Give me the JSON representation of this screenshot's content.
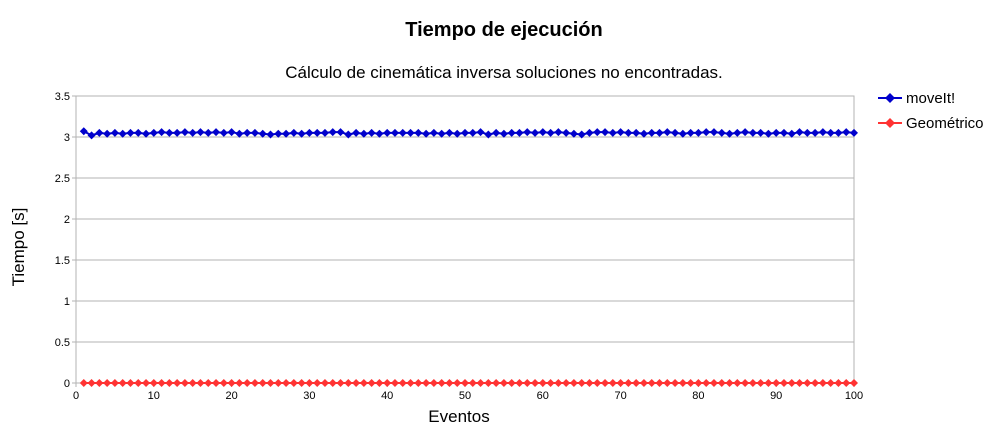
{
  "chart_data": {
    "type": "line",
    "title": "Tiempo de ejecución",
    "subtitle": "Cálculo de cinemática inversa soluciones no encontradas.",
    "xlabel": "Eventos",
    "ylabel": "Tiempo [s]",
    "xlim": [
      0,
      100
    ],
    "ylim": [
      0,
      3.5
    ],
    "xticks": [
      0,
      10,
      20,
      30,
      40,
      50,
      60,
      70,
      80,
      90,
      100
    ],
    "yticks": [
      0,
      0.5,
      1,
      1.5,
      2,
      2.5,
      3,
      3.5
    ],
    "grid": true,
    "legend_position": "right",
    "x": [
      1,
      2,
      3,
      4,
      5,
      6,
      7,
      8,
      9,
      10,
      11,
      12,
      13,
      14,
      15,
      16,
      17,
      18,
      19,
      20,
      21,
      22,
      23,
      24,
      25,
      26,
      27,
      28,
      29,
      30,
      31,
      32,
      33,
      34,
      35,
      36,
      37,
      38,
      39,
      40,
      41,
      42,
      43,
      44,
      45,
      46,
      47,
      48,
      49,
      50,
      51,
      52,
      53,
      54,
      55,
      56,
      57,
      58,
      59,
      60,
      61,
      62,
      63,
      64,
      65,
      66,
      67,
      68,
      69,
      70,
      71,
      72,
      73,
      74,
      75,
      76,
      77,
      78,
      79,
      80,
      81,
      82,
      83,
      84,
      85,
      86,
      87,
      88,
      89,
      90,
      91,
      92,
      93,
      94,
      95,
      96,
      97,
      98,
      99,
      100
    ],
    "series": [
      {
        "name": "moveIt!",
        "color": "#0000cc",
        "marker": "diamond",
        "values": [
          3.07,
          3.02,
          3.05,
          3.04,
          3.05,
          3.04,
          3.05,
          3.05,
          3.04,
          3.05,
          3.06,
          3.05,
          3.05,
          3.06,
          3.05,
          3.06,
          3.05,
          3.06,
          3.05,
          3.06,
          3.04,
          3.05,
          3.05,
          3.04,
          3.03,
          3.04,
          3.04,
          3.05,
          3.04,
          3.05,
          3.05,
          3.05,
          3.06,
          3.06,
          3.03,
          3.05,
          3.04,
          3.05,
          3.04,
          3.05,
          3.05,
          3.05,
          3.05,
          3.05,
          3.04,
          3.05,
          3.04,
          3.05,
          3.04,
          3.05,
          3.05,
          3.06,
          3.03,
          3.05,
          3.04,
          3.05,
          3.05,
          3.06,
          3.05,
          3.06,
          3.05,
          3.06,
          3.05,
          3.04,
          3.03,
          3.05,
          3.06,
          3.06,
          3.05,
          3.06,
          3.05,
          3.05,
          3.04,
          3.05,
          3.05,
          3.06,
          3.05,
          3.04,
          3.05,
          3.05,
          3.06,
          3.06,
          3.05,
          3.04,
          3.05,
          3.06,
          3.05,
          3.05,
          3.04,
          3.05,
          3.05,
          3.04,
          3.06,
          3.05,
          3.05,
          3.06,
          3.05,
          3.05,
          3.06,
          3.05
        ]
      },
      {
        "name": "Geométrico",
        "color": "#ff3333",
        "marker": "diamond",
        "values": [
          0,
          0,
          0,
          0,
          0,
          0,
          0,
          0,
          0,
          0,
          0,
          0,
          0,
          0,
          0,
          0,
          0,
          0,
          0,
          0,
          0,
          0,
          0,
          0,
          0,
          0,
          0,
          0,
          0,
          0,
          0,
          0,
          0,
          0,
          0,
          0,
          0,
          0,
          0,
          0,
          0,
          0,
          0,
          0,
          0,
          0,
          0,
          0,
          0,
          0,
          0,
          0,
          0,
          0,
          0,
          0,
          0,
          0,
          0,
          0,
          0,
          0,
          0,
          0,
          0,
          0,
          0,
          0,
          0,
          0,
          0,
          0,
          0,
          0,
          0,
          0,
          0,
          0,
          0,
          0,
          0,
          0,
          0,
          0,
          0,
          0,
          0,
          0,
          0,
          0,
          0,
          0,
          0,
          0,
          0,
          0,
          0,
          0,
          0,
          0
        ]
      }
    ]
  }
}
